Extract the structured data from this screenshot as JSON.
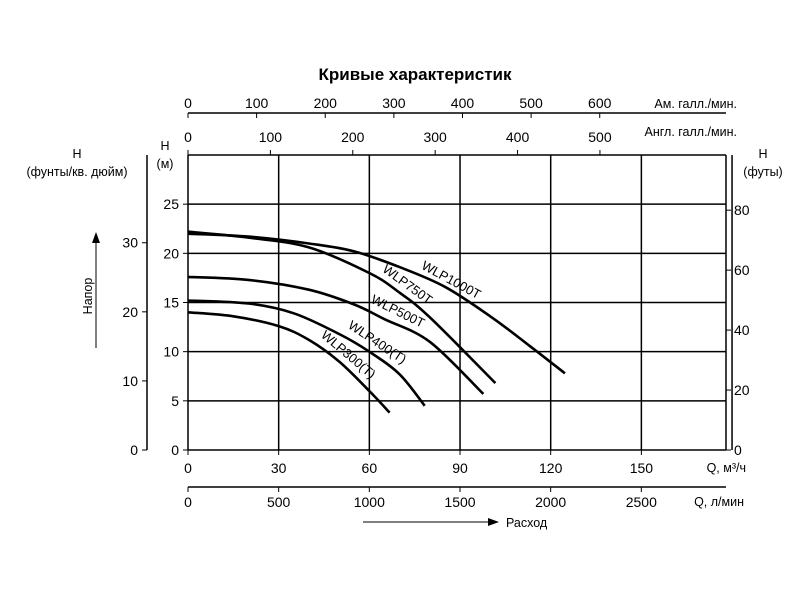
{
  "chart_data": {
    "type": "line",
    "title": "Кривые характеристик",
    "x_axes": {
      "flow_m3h": {
        "label": "Q, м³/ч",
        "ticks": [
          0,
          30,
          60,
          90,
          120,
          150
        ],
        "range": [
          0,
          178
        ]
      },
      "flow_lpm": {
        "label": "Q, л/мин",
        "ticks": [
          0,
          500,
          1000,
          1500,
          2000,
          2500
        ],
        "range": [
          0,
          2967
        ]
      },
      "flow_us_gpm": {
        "label": "Ам. галл./мин.",
        "ticks": [
          0,
          100,
          200,
          300,
          400,
          500,
          600
        ],
        "range": [
          0,
          784
        ]
      },
      "flow_uk_gpm": {
        "label": "Англ. галл./мин.",
        "ticks": [
          0,
          100,
          200,
          300,
          400,
          500
        ],
        "range": [
          0,
          653
        ]
      },
      "flow_direction_label": "Расход"
    },
    "y_axes": {
      "head_m": {
        "label_top": "H",
        "label_bottom": "(м)",
        "ticks": [
          0,
          5,
          10,
          15,
          20,
          25
        ],
        "range": [
          0,
          30
        ]
      },
      "head_psi": {
        "label_top": "H",
        "label_bottom": "(фунты/кв. дюйм)",
        "ticks": [
          0,
          10,
          20,
          30
        ],
        "range": [
          0,
          42.7
        ]
      },
      "head_ft": {
        "label_top": "H",
        "label_bottom": "(футы)",
        "ticks": [
          0,
          20,
          40,
          60,
          80
        ],
        "range": [
          0,
          98.4
        ]
      },
      "head_direction_label": "Напор"
    },
    "grid": true,
    "x_unit": "м³/ч",
    "y_unit": "м",
    "series": [
      {
        "name": "WLP300(T)",
        "x": [
          0,
          15,
          30,
          40,
          50,
          60,
          66.7
        ],
        "y": [
          14,
          13.6,
          12.6,
          11.2,
          9,
          6,
          3.8
        ]
      },
      {
        "name": "WLP400(T)",
        "x": [
          0,
          20,
          35,
          50,
          60,
          70,
          78.3
        ],
        "y": [
          15.2,
          14.9,
          13.9,
          11.8,
          10,
          7.7,
          4.5
        ]
      },
      {
        "name": "WLP500T",
        "x": [
          0,
          20,
          40,
          55,
          65,
          80,
          97.7
        ],
        "y": [
          17.6,
          17.3,
          16.3,
          14.8,
          13.3,
          11,
          5.7
        ]
      },
      {
        "name": "WLP750T",
        "x": [
          0,
          20,
          40,
          60,
          70,
          80,
          101.7
        ],
        "y": [
          22.2,
          21.6,
          20.6,
          18,
          16,
          13.5,
          6.8
        ]
      },
      {
        "name": "WLP1000T",
        "x": [
          0,
          20,
          40,
          55,
          70,
          85,
          100,
          113,
          124.7
        ],
        "y": [
          22,
          21.7,
          21,
          20.2,
          18.6,
          16.6,
          13.6,
          10.6,
          7.8
        ]
      }
    ]
  }
}
